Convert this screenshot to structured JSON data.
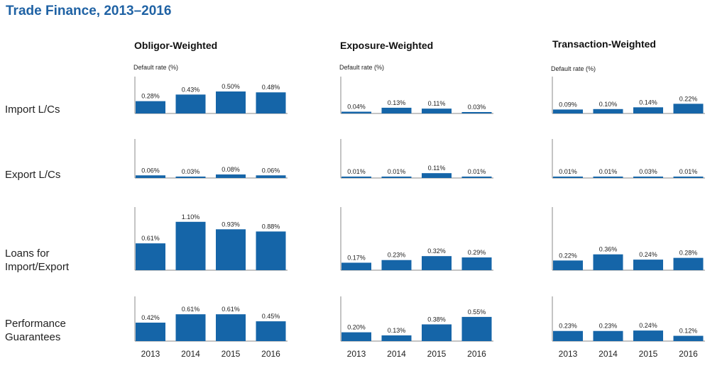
{
  "title": "Trade Finance, 2013–2016",
  "chart_data": {
    "type": "bar",
    "title": "Trade Finance, 2013–2016",
    "categories": [
      "2013",
      "2014",
      "2015",
      "2016"
    ],
    "ylabel": "Default rate (%)",
    "colors": {
      "bar": "#1565a8",
      "axis": "#888888"
    },
    "columns": [
      "Obligor-Weighted",
      "Exposure-Weighted",
      "Transaction-Weighted"
    ],
    "rows": [
      {
        "label_lines": [
          "Import L/Cs"
        ]
      },
      {
        "label_lines": [
          "Export L/Cs"
        ]
      },
      {
        "label_lines": [
          "Loans for",
          "Import/Export"
        ]
      },
      {
        "label_lines": [
          "Performance",
          "Guarantees"
        ]
      }
    ],
    "panels": [
      {
        "column": "Obligor-Weighted",
        "row": "Import L/Cs",
        "values": [
          0.28,
          0.43,
          0.5,
          0.48
        ],
        "labels": [
          "0.28%",
          "0.43%",
          "0.50%",
          "0.48%"
        ]
      },
      {
        "column": "Obligor-Weighted",
        "row": "Export L/Cs",
        "values": [
          0.06,
          0.03,
          0.08,
          0.06
        ],
        "labels": [
          "0.06%",
          "0.03%",
          "0.08%",
          "0.06%"
        ]
      },
      {
        "column": "Obligor-Weighted",
        "row": "Loans for Import/Export",
        "values": [
          0.61,
          1.1,
          0.93,
          0.88
        ],
        "labels": [
          "0.61%",
          "1.10%",
          "0.93%",
          "0.88%"
        ]
      },
      {
        "column": "Obligor-Weighted",
        "row": "Performance Guarantees",
        "values": [
          0.42,
          0.61,
          0.61,
          0.45
        ],
        "labels": [
          "0.42%",
          "0.61%",
          "0.61%",
          "0.45%"
        ]
      },
      {
        "column": "Exposure-Weighted",
        "row": "Import L/Cs",
        "values": [
          0.04,
          0.13,
          0.11,
          0.03
        ],
        "labels": [
          "0.04%",
          "0.13%",
          "0.11%",
          "0.03%"
        ]
      },
      {
        "column": "Exposure-Weighted",
        "row": "Export L/Cs",
        "values": [
          0.01,
          0.01,
          0.11,
          0.01
        ],
        "labels": [
          "0.01%",
          "0.01%",
          "0.11%",
          "0.01%"
        ]
      },
      {
        "column": "Exposure-Weighted",
        "row": "Loans for Import/Export",
        "values": [
          0.17,
          0.23,
          0.32,
          0.29
        ],
        "labels": [
          "0.17%",
          "0.23%",
          "0.32%",
          "0.29%"
        ]
      },
      {
        "column": "Exposure-Weighted",
        "row": "Performance Guarantees",
        "values": [
          0.2,
          0.13,
          0.38,
          0.55
        ],
        "labels": [
          "0.20%",
          "0.13%",
          "0.38%",
          "0.55%"
        ]
      },
      {
        "column": "Transaction-Weighted",
        "row": "Import L/Cs",
        "values": [
          0.09,
          0.1,
          0.14,
          0.22
        ],
        "labels": [
          "0.09%",
          "0.10%",
          "0.14%",
          "0.22%"
        ]
      },
      {
        "column": "Transaction-Weighted",
        "row": "Export L/Cs",
        "values": [
          0.01,
          0.01,
          0.03,
          0.01
        ],
        "labels": [
          "0.01%",
          "0.01%",
          "0.03%",
          "0.01%"
        ]
      },
      {
        "column": "Transaction-Weighted",
        "row": "Loans for Import/Export",
        "values": [
          0.22,
          0.36,
          0.24,
          0.28
        ],
        "labels": [
          "0.22%",
          "0.36%",
          "0.24%",
          "0.28%"
        ]
      },
      {
        "column": "Transaction-Weighted",
        "row": "Performance Guarantees",
        "values": [
          0.23,
          0.23,
          0.24,
          0.12
        ],
        "labels": [
          "0.23%",
          "0.23%",
          "0.24%",
          "0.12%"
        ]
      }
    ]
  }
}
